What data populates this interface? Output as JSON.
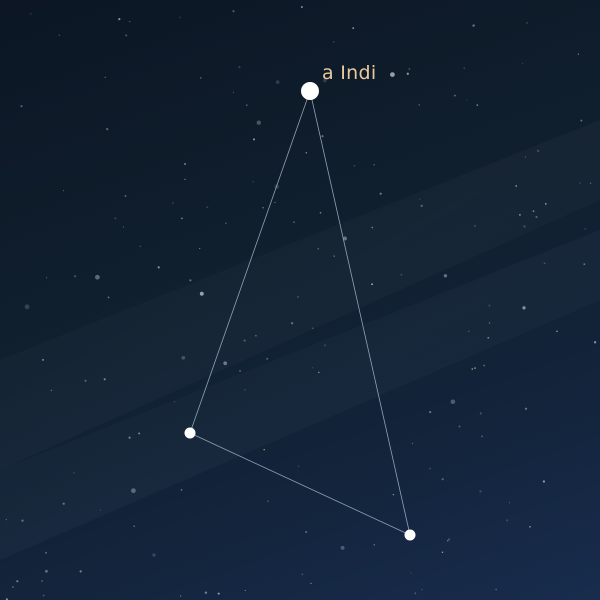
{
  "constellation": {
    "label_color": "#e9c9a0",
    "line_color": "#8fa3b5",
    "star_color": "#ffffff",
    "stars": [
      {
        "id": "alpha",
        "label": "a Indi"
      },
      {
        "id": "beta"
      },
      {
        "id": "theta"
      }
    ]
  }
}
